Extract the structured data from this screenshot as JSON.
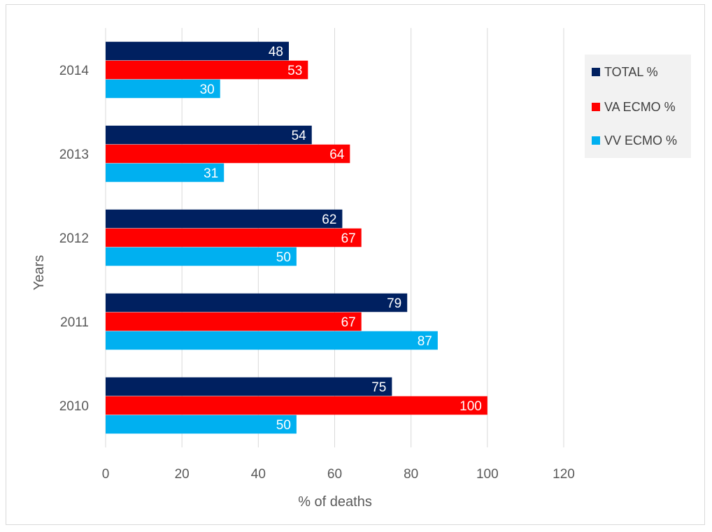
{
  "chart_data": {
    "type": "bar",
    "orientation": "horizontal",
    "title": "",
    "xlabel": "% of deaths",
    "ylabel": "Years",
    "xlim": [
      0,
      120
    ],
    "x_ticks": [
      0,
      20,
      40,
      60,
      80,
      100,
      120
    ],
    "categories": [
      "2014",
      "2013",
      "2012",
      "2011",
      "2010"
    ],
    "series": [
      {
        "name": "TOTAL %",
        "color": "#002060",
        "values": [
          48,
          54,
          62,
          79,
          75
        ]
      },
      {
        "name": "VA ECMO %",
        "color": "#ff0000",
        "values": [
          53,
          64,
          67,
          67,
          100
        ]
      },
      {
        "name": "VV ECMO %",
        "color": "#00b0f0",
        "values": [
          30,
          31,
          50,
          87,
          50
        ]
      }
    ],
    "grid": "vertical",
    "legend_position": "right",
    "data_labels": true
  }
}
